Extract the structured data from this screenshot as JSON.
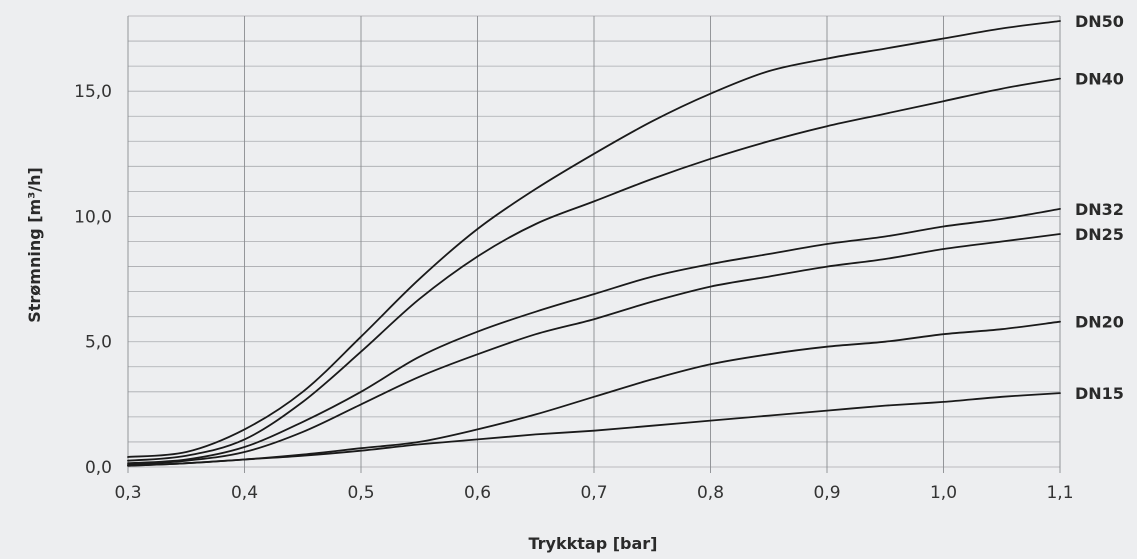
{
  "chart_data": {
    "type": "line",
    "xlabel": "Trykktap [bar]",
    "ylabel": "Strømning [m³/h]",
    "xlim": [
      0.3,
      1.1
    ],
    "ylim": [
      0,
      18
    ],
    "x_ticks": [
      0.3,
      0.4,
      0.5,
      0.6,
      0.7,
      0.8,
      0.9,
      1.0,
      1.1
    ],
    "x_tick_labels": [
      "0,3",
      "0,4",
      "0,5",
      "0,6",
      "0,7",
      "0,8",
      "0,9",
      "1,0",
      "1,1"
    ],
    "y_ticks": [
      0,
      5,
      10,
      15
    ],
    "y_tick_labels": [
      "0,0",
      "5,0",
      "10,0",
      "15,0"
    ],
    "grid": true,
    "legend": "series labels at right end of lines",
    "series": [
      {
        "name": "DN50",
        "points": [
          [
            0.3,
            0.4
          ],
          [
            0.35,
            0.6
          ],
          [
            0.4,
            1.5
          ],
          [
            0.45,
            3.0
          ],
          [
            0.5,
            5.2
          ],
          [
            0.55,
            7.5
          ],
          [
            0.6,
            9.5
          ],
          [
            0.65,
            11.1
          ],
          [
            0.7,
            12.5
          ],
          [
            0.75,
            13.8
          ],
          [
            0.8,
            14.9
          ],
          [
            0.85,
            15.8
          ],
          [
            0.9,
            16.3
          ],
          [
            0.95,
            16.7
          ],
          [
            1.0,
            17.1
          ],
          [
            1.05,
            17.5
          ],
          [
            1.1,
            17.8
          ]
        ]
      },
      {
        "name": "DN40",
        "points": [
          [
            0.3,
            0.25
          ],
          [
            0.35,
            0.45
          ],
          [
            0.4,
            1.1
          ],
          [
            0.45,
            2.6
          ],
          [
            0.5,
            4.6
          ],
          [
            0.55,
            6.7
          ],
          [
            0.6,
            8.4
          ],
          [
            0.65,
            9.7
          ],
          [
            0.7,
            10.6
          ],
          [
            0.75,
            11.5
          ],
          [
            0.8,
            12.3
          ],
          [
            0.85,
            13.0
          ],
          [
            0.9,
            13.6
          ],
          [
            0.95,
            14.1
          ],
          [
            1.0,
            14.6
          ],
          [
            1.05,
            15.1
          ],
          [
            1.1,
            15.5
          ]
        ]
      },
      {
        "name": "DN32",
        "points": [
          [
            0.3,
            0.15
          ],
          [
            0.35,
            0.3
          ],
          [
            0.4,
            0.8
          ],
          [
            0.45,
            1.8
          ],
          [
            0.5,
            3.0
          ],
          [
            0.55,
            4.4
          ],
          [
            0.6,
            5.4
          ],
          [
            0.65,
            6.2
          ],
          [
            0.7,
            6.9
          ],
          [
            0.75,
            7.6
          ],
          [
            0.8,
            8.1
          ],
          [
            0.85,
            8.5
          ],
          [
            0.9,
            8.9
          ],
          [
            0.95,
            9.2
          ],
          [
            1.0,
            9.6
          ],
          [
            1.05,
            9.9
          ],
          [
            1.1,
            10.3
          ]
        ]
      },
      {
        "name": "DN25",
        "points": [
          [
            0.3,
            0.1
          ],
          [
            0.35,
            0.25
          ],
          [
            0.4,
            0.6
          ],
          [
            0.45,
            1.4
          ],
          [
            0.5,
            2.5
          ],
          [
            0.55,
            3.6
          ],
          [
            0.6,
            4.5
          ],
          [
            0.65,
            5.3
          ],
          [
            0.7,
            5.9
          ],
          [
            0.75,
            6.6
          ],
          [
            0.8,
            7.2
          ],
          [
            0.85,
            7.6
          ],
          [
            0.9,
            8.0
          ],
          [
            0.95,
            8.3
          ],
          [
            1.0,
            8.7
          ],
          [
            1.05,
            9.0
          ],
          [
            1.1,
            9.3
          ]
        ]
      },
      {
        "name": "DN20",
        "points": [
          [
            0.3,
            0.05
          ],
          [
            0.35,
            0.15
          ],
          [
            0.4,
            0.3
          ],
          [
            0.45,
            0.5
          ],
          [
            0.5,
            0.75
          ],
          [
            0.55,
            1.0
          ],
          [
            0.6,
            1.5
          ],
          [
            0.65,
            2.1
          ],
          [
            0.7,
            2.8
          ],
          [
            0.75,
            3.5
          ],
          [
            0.8,
            4.1
          ],
          [
            0.85,
            4.5
          ],
          [
            0.9,
            4.8
          ],
          [
            0.95,
            5.0
          ],
          [
            1.0,
            5.3
          ],
          [
            1.05,
            5.5
          ],
          [
            1.1,
            5.8
          ]
        ]
      },
      {
        "name": "DN15",
        "points": [
          [
            0.3,
            0.05
          ],
          [
            0.35,
            0.15
          ],
          [
            0.4,
            0.3
          ],
          [
            0.45,
            0.45
          ],
          [
            0.5,
            0.65
          ],
          [
            0.55,
            0.9
          ],
          [
            0.6,
            1.1
          ],
          [
            0.65,
            1.3
          ],
          [
            0.7,
            1.45
          ],
          [
            0.75,
            1.65
          ],
          [
            0.8,
            1.85
          ],
          [
            0.85,
            2.05
          ],
          [
            0.9,
            2.25
          ],
          [
            0.95,
            2.45
          ],
          [
            1.0,
            2.6
          ],
          [
            1.05,
            2.8
          ],
          [
            1.1,
            2.95
          ]
        ]
      }
    ]
  }
}
